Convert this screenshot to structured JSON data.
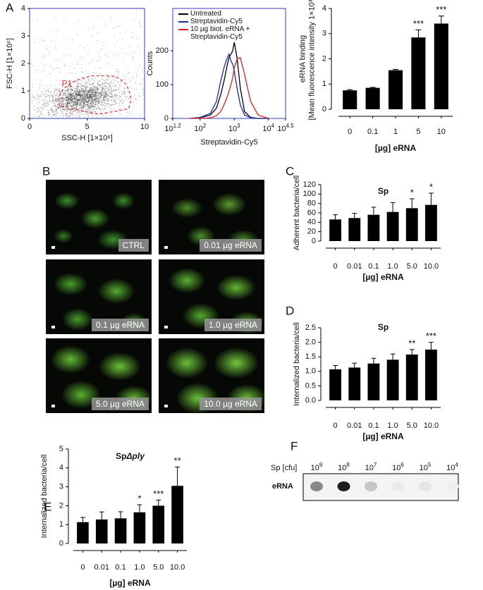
{
  "panel_labels": [
    "A",
    "B",
    "C",
    "D",
    "E",
    "F"
  ],
  "chart_data": [
    {
      "type": "scatter",
      "xlabel": "SSC-H [1×10⁶]",
      "ylabel": "FSC-H [1×10⁶]",
      "xlim": [
        0,
        10
      ],
      "xticks": [
        0,
        5,
        10
      ],
      "ylim": [
        0,
        4
      ],
      "yticks": [
        0,
        1,
        2,
        3,
        4
      ],
      "annotation": "P1",
      "gate_color": "#e03030",
      "frame_color": "#3a3ac8"
    },
    {
      "type": "line",
      "xlabel": "Streptavidin-Cy5",
      "ylabel": "Counts",
      "xscale": "log",
      "xlim": [
        15.85,
        31623
      ],
      "xticks": [
        {
          "value": 15.85,
          "label": "10",
          "sup": "1.2"
        },
        {
          "value": 100,
          "label": "10",
          "sup": "2"
        },
        {
          "value": 1000,
          "label": "10",
          "sup": "3"
        },
        {
          "value": 10000,
          "label": "10",
          "sup": "4"
        },
        {
          "value": 31623,
          "label": "10",
          "sup": "4.5"
        }
      ],
      "ylim": [
        0,
        325
      ],
      "yticks": [
        0,
        100,
        200
      ],
      "frame_color": "#3a3ac8",
      "x": [
        50,
        100,
        200,
        300,
        400,
        500,
        600,
        700,
        800,
        900,
        1000,
        1200,
        1500,
        2000,
        3000,
        5000,
        10000
      ],
      "series": [
        {
          "name": "Untreated",
          "color": "#000000",
          "values": [
            0,
            2,
            10,
            30,
            70,
            110,
            150,
            180,
            190,
            200,
            225,
            180,
            90,
            20,
            3,
            0,
            0
          ]
        },
        {
          "name": "Streptavidin-Cy5",
          "color": "#1a2ab0",
          "values": [
            0,
            3,
            15,
            50,
            110,
            150,
            175,
            190,
            170,
            160,
            140,
            90,
            40,
            10,
            2,
            0,
            0
          ]
        },
        {
          "name": "10 µg biot. eRNA + Streptavidin-Cy5",
          "color": "#e02020",
          "values": [
            0,
            0,
            2,
            8,
            20,
            40,
            60,
            80,
            100,
            120,
            150,
            175,
            180,
            130,
            50,
            10,
            0
          ]
        }
      ]
    },
    {
      "type": "bar",
      "xlabel": "[µg] eRNA",
      "ylabel": [
        "eRNA binding",
        "[Mean fluorescence intensity 1×10³]"
      ],
      "categories": [
        "0",
        "0.1",
        "1",
        "5",
        "10"
      ],
      "values": [
        0.75,
        0.85,
        1.55,
        2.85,
        3.4
      ],
      "errors": [
        0.03,
        0.02,
        0.03,
        0.3,
        0.3
      ],
      "annotations": [
        null,
        null,
        null,
        "***",
        "***"
      ],
      "ylim": [
        0,
        4
      ],
      "yticks": [
        0,
        1,
        2,
        3,
        4
      ],
      "color": "#000000"
    },
    {
      "type": "bar",
      "title": "Sp",
      "xlabel": "[µg] eRNA",
      "ylabel": [
        "Adherent bacteria/cell"
      ],
      "categories": [
        "0",
        "0.01",
        "0.1",
        "1.0",
        "5.0",
        "10.0"
      ],
      "values": [
        46,
        49,
        56,
        62,
        70,
        77
      ],
      "errors": [
        10,
        10,
        16,
        20,
        20,
        25
      ],
      "annotations": [
        null,
        null,
        null,
        null,
        "*",
        "*"
      ],
      "ylim": [
        0,
        120
      ],
      "yticks": [
        0,
        20,
        40,
        60,
        80,
        100,
        120
      ],
      "color": "#000000"
    },
    {
      "type": "bar",
      "title": "Sp",
      "xlabel": "[µg] eRNA",
      "ylabel": [
        "Internalized bacteria/cell"
      ],
      "categories": [
        "0",
        "0.01",
        "0.1",
        "1.0",
        "5.0",
        "10.0"
      ],
      "values": [
        1.07,
        1.13,
        1.27,
        1.4,
        1.58,
        1.75
      ],
      "errors": [
        0.13,
        0.15,
        0.18,
        0.2,
        0.17,
        0.25
      ],
      "annotations": [
        null,
        null,
        null,
        null,
        "**",
        "***"
      ],
      "ylim": [
        0,
        2.5
      ],
      "yticks": [
        {
          "value": 0,
          "label": "0.0"
        },
        0.5,
        {
          "value": 1,
          "label": "1.0"
        },
        1.5,
        {
          "value": 2,
          "label": "2.0"
        },
        2.5
      ],
      "color": "#000000"
    },
    {
      "type": "bar",
      "title": "Sp",
      "title_italic": "Δply",
      "xlabel": "[µg] eRNA",
      "ylabel": [
        "Internalized bacteria/cell"
      ],
      "categories": [
        "0",
        "0.01",
        "0.1",
        "1.0",
        "5.0",
        "10.0"
      ],
      "values": [
        1.13,
        1.27,
        1.33,
        1.65,
        2.0,
        3.05
      ],
      "errors": [
        0.25,
        0.4,
        0.35,
        0.4,
        0.3,
        1.0
      ],
      "annotations": [
        null,
        null,
        null,
        "*",
        "***",
        "**"
      ],
      "ylim": [
        0,
        5
      ],
      "yticks": [
        0,
        1,
        2,
        3,
        4,
        5
      ],
      "color": "#000000"
    }
  ],
  "images": {
    "labels": [
      "CTRL",
      "0.01 µg eRNA",
      "0.1 µg eRNA",
      "1.0 µg eRNA",
      "5.0 µg eRNA",
      "10.0 µg eRNA"
    ]
  },
  "dot_blot": {
    "header": "Sp [cfu]",
    "row_label": "eRNA",
    "columns": [
      {
        "label": "10",
        "sup": "9"
      },
      {
        "label": "10",
        "sup": "8"
      },
      {
        "label": "10",
        "sup": "7"
      },
      {
        "label": "10",
        "sup": "6"
      },
      {
        "label": "10",
        "sup": "5"
      },
      {
        "label": "10",
        "sup": "4"
      }
    ]
  }
}
